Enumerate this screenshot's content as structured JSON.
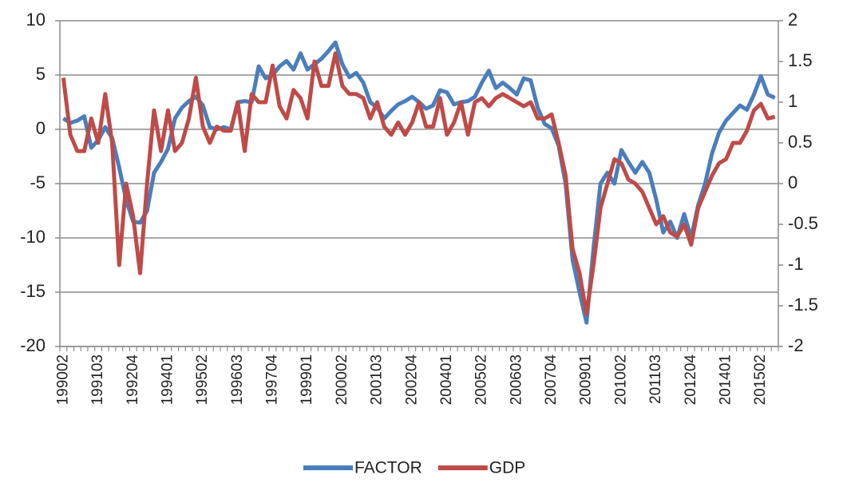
{
  "chart_data": {
    "type": "line",
    "categories": [
      "199002",
      null,
      null,
      null,
      null,
      "199103",
      null,
      null,
      null,
      null,
      "199204",
      null,
      null,
      null,
      null,
      "199401",
      null,
      null,
      null,
      null,
      "199502",
      null,
      null,
      null,
      null,
      "199603",
      null,
      null,
      null,
      null,
      "199704",
      null,
      null,
      null,
      null,
      "199901",
      null,
      null,
      null,
      null,
      "200002",
      null,
      null,
      null,
      null,
      "200103",
      null,
      null,
      null,
      null,
      "200204",
      null,
      null,
      null,
      null,
      "200401",
      null,
      null,
      null,
      null,
      "200502",
      null,
      null,
      null,
      null,
      "200603",
      null,
      null,
      null,
      null,
      "200704",
      null,
      null,
      null,
      null,
      "200901",
      null,
      null,
      null,
      null,
      "201002",
      null,
      null,
      null,
      null,
      "201103",
      null,
      null,
      null,
      null,
      "201204",
      null,
      null,
      null,
      null,
      "201401",
      null,
      null,
      null,
      null,
      "201502",
      null,
      null
    ],
    "series": [
      {
        "name": "FACTOR",
        "color": "#4a7ebb",
        "values": [
          1,
          0.6,
          0.8,
          1.2,
          -1.7,
          -1,
          0.2,
          -0.8,
          -3.5,
          -6.5,
          -8.5,
          -8.6,
          -7.5,
          -4,
          -3,
          -1.8,
          1,
          2,
          2.6,
          3,
          2.2,
          0.2,
          0,
          0.2,
          0,
          2.5,
          2.6,
          2.5,
          5.8,
          4.7,
          5,
          5.8,
          6.3,
          5.5,
          7,
          5.5,
          6,
          6.5,
          7.2,
          8,
          6,
          4.8,
          5.2,
          4.3,
          2.5,
          2,
          1,
          1.7,
          2.3,
          2.6,
          3,
          2.5,
          1.9,
          2.2,
          3.6,
          3.4,
          2.3,
          2.5,
          2.6,
          3,
          4.3,
          5.4,
          3.8,
          4.3,
          3.8,
          3.2,
          4.7,
          4.5,
          2,
          0.5,
          0.1,
          -1.5,
          -5,
          -12,
          -15,
          -17.8,
          -11,
          -5,
          -4,
          -5,
          -1.9,
          -3,
          -4,
          -3,
          -4,
          -6.5,
          -9.5,
          -8.5,
          -10,
          -7.8,
          -10,
          -7,
          -5,
          -2.2,
          -0.3,
          0.8,
          1.5,
          2.2,
          1.8,
          3.2,
          4.9,
          3.2,
          2.9
        ]
      },
      {
        "name": "GDP",
        "color": "#be4b48",
        "axis": "y2",
        "values": [
          1.3,
          0.6,
          0.4,
          0.4,
          0.8,
          0.5,
          1.1,
          0.5,
          -1,
          0,
          -0.4,
          -1.1,
          0,
          0.9,
          0.4,
          0.9,
          0.4,
          0.5,
          0.8,
          1.3,
          0.7,
          0.5,
          0.7,
          0.65,
          0.65,
          1,
          0.4,
          1.1,
          1,
          1,
          1.45,
          0.95,
          0.8,
          1.15,
          1.05,
          0.8,
          1.5,
          1.2,
          1.2,
          1.6,
          1.2,
          1.1,
          1.1,
          1.05,
          0.8,
          1,
          0.7,
          0.6,
          0.75,
          0.6,
          0.75,
          1,
          0.7,
          0.7,
          1.05,
          0.6,
          0.75,
          1,
          0.6,
          1,
          1.05,
          0.95,
          1.05,
          1.1,
          1.05,
          1,
          0.95,
          1,
          0.8,
          0.8,
          0.85,
          0.5,
          0.1,
          -0.8,
          -1.1,
          -1.6,
          -1,
          -0.3,
          0,
          0.3,
          0.25,
          0.05,
          0,
          -0.1,
          -0.3,
          -0.5,
          -0.4,
          -0.6,
          -0.65,
          -0.5,
          -0.75,
          -0.3,
          -0.1,
          0.1,
          0.25,
          0.3,
          0.5,
          0.5,
          0.65,
          0.9,
          0.98,
          0.8,
          0.82
        ]
      }
    ],
    "ylim": [
      -20,
      10
    ],
    "yticks": [
      -20,
      -15,
      -10,
      -5,
      0,
      5,
      10
    ],
    "y2lim": [
      -2,
      2
    ],
    "y2ticks": [
      -2,
      -1.5,
      -1,
      -0.5,
      0,
      0.5,
      1,
      1.5,
      2
    ],
    "grid": true,
    "legend": "bottom"
  }
}
